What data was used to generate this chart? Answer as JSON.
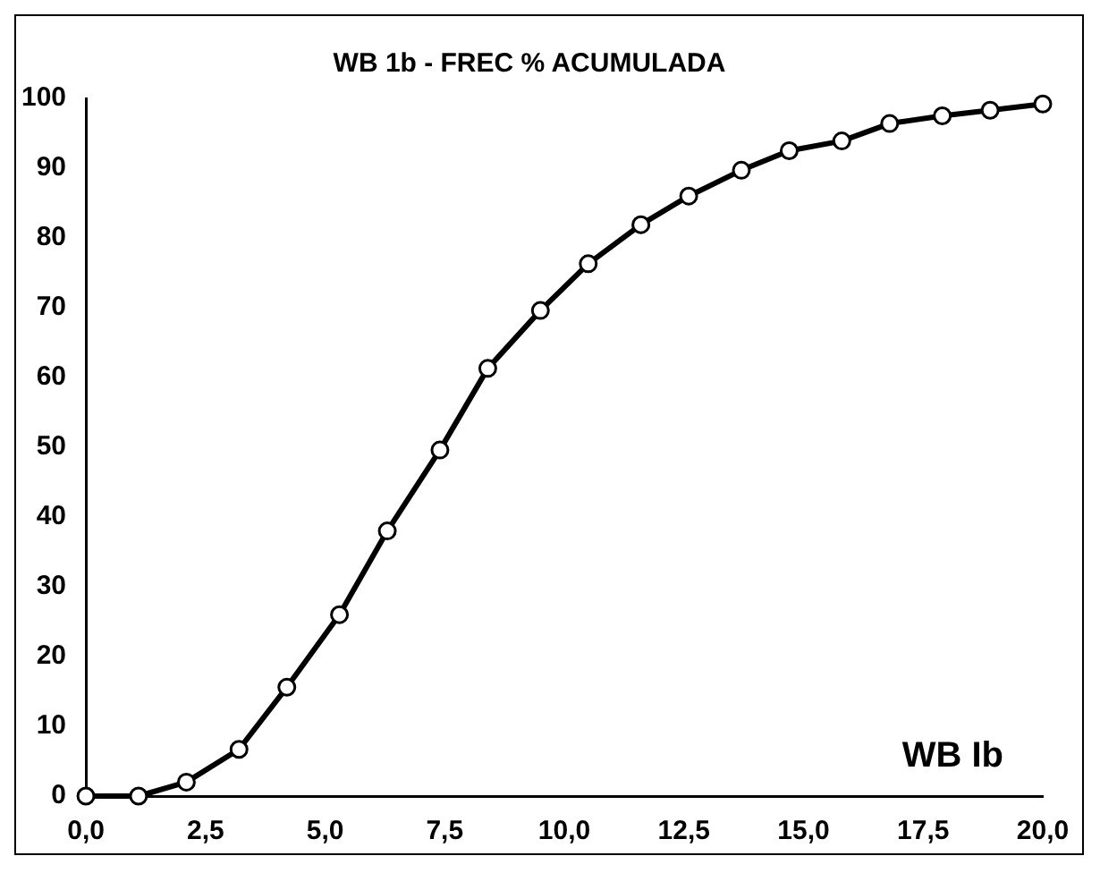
{
  "chart_data": {
    "type": "line",
    "title": "WB 1b - FREC % ACUMULADA",
    "x": [
      0,
      1.1,
      2.1,
      3.2,
      4.2,
      5.3,
      6.3,
      7.4,
      8.4,
      9.5,
      10.5,
      11.6,
      12.6,
      13.7,
      14.7,
      15.8,
      16.8,
      17.9,
      18.9,
      20
    ],
    "series": [
      {
        "color": "#000000",
        "values": [
          0,
          0,
          2,
          6.7,
          15.6,
          26,
          38,
          49.6,
          61.3,
          69.6,
          76.3,
          81.9,
          86,
          89.7,
          92.5,
          93.9,
          96.4,
          97.5,
          98.3,
          99.2
        ]
      }
    ],
    "xlim": [
      0,
      20
    ],
    "xticks": [
      {
        "value": 0,
        "label": "0,0"
      },
      {
        "value": 2.5,
        "label": "2,5"
      },
      {
        "value": 5,
        "label": "5,0"
      },
      {
        "value": 7.5,
        "label": "7,5"
      },
      {
        "value": 10,
        "label": "10,0"
      },
      {
        "value": 12.5,
        "label": "12,5"
      },
      {
        "value": 15,
        "label": "15,0"
      },
      {
        "value": 17.5,
        "label": "17,5"
      },
      {
        "value": 20,
        "label": "20,0"
      }
    ],
    "ylim": [
      0,
      100
    ],
    "yticks": [
      0,
      10,
      20,
      30,
      40,
      50,
      60,
      70,
      80,
      90,
      100
    ],
    "annotations": [
      "WB Ib"
    ],
    "grid": false,
    "legend": false,
    "marker": "circle",
    "line_style": "solid"
  }
}
